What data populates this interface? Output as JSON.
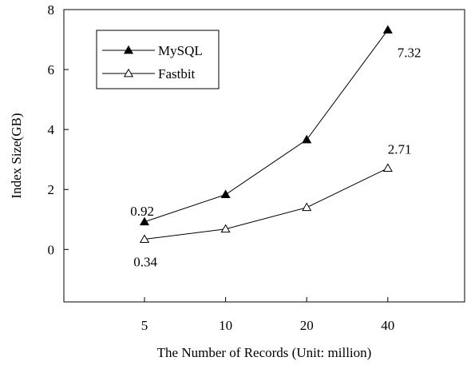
{
  "chart_data": {
    "type": "line",
    "title": "",
    "xlabel": "The Number of Records (Unit: million)",
    "ylabel": "Index Size(GB)",
    "categories": [
      "5",
      "10",
      "20",
      "40"
    ],
    "ylim": [
      -1.75,
      8
    ],
    "yticks": [
      0,
      2,
      4,
      6,
      8
    ],
    "grid": false,
    "legend_position": "top-left",
    "series": [
      {
        "name": "MySQL",
        "marker": "filled-triangle",
        "color": "#000000",
        "values": [
          0.92,
          1.83,
          3.66,
          7.32
        ],
        "annotations": [
          {
            "index": 0,
            "text": "0.92",
            "placement": "above-left"
          },
          {
            "index": 3,
            "text": "7.32",
            "placement": "below-right"
          }
        ]
      },
      {
        "name": "Fastbit",
        "marker": "open-triangle",
        "color": "#000000",
        "values": [
          0.34,
          0.68,
          1.4,
          2.71
        ],
        "annotations": [
          {
            "index": 0,
            "text": "0.34",
            "placement": "below-left"
          },
          {
            "index": 3,
            "text": "2.71",
            "placement": "above-right"
          }
        ]
      }
    ]
  }
}
